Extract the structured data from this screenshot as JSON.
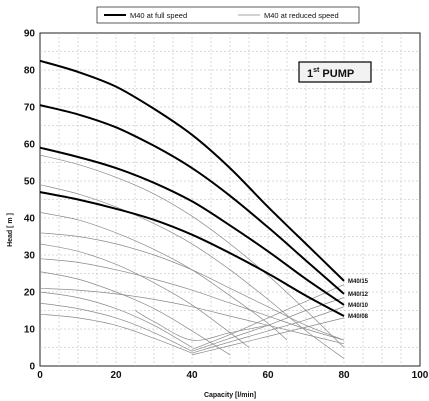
{
  "chart_data": {
    "type": "line",
    "title": "",
    "xlabel": "Capacity  [l/min]",
    "ylabel": "Head  [ m ]",
    "xlim": [
      0,
      100
    ],
    "ylim": [
      0,
      90
    ],
    "xticks": [
      "0",
      "20",
      "40",
      "60",
      "80",
      "100"
    ],
    "yticks": [
      "0",
      "10",
      "20",
      "30",
      "40",
      "50",
      "60",
      "70",
      "80",
      "90"
    ],
    "grid": true,
    "legend_position": "top",
    "legend": {
      "full": "M40 at full speed",
      "reduced": "M40 at reduced speed"
    },
    "annotation": {
      "prefix": "1",
      "superscript": "st",
      "suffix": " PUMP"
    },
    "series": [
      {
        "name": "M40/15",
        "style": "full",
        "label": "M40/15",
        "x": [
          0,
          10,
          20,
          30,
          40,
          50,
          60,
          70,
          80
        ],
        "y": [
          82.5,
          79.5,
          75.5,
          69.5,
          62.5,
          53.5,
          43,
          33,
          23
        ]
      },
      {
        "name": "M40/12",
        "style": "full",
        "label": "M40/12",
        "x": [
          0,
          10,
          20,
          30,
          40,
          50,
          60,
          70,
          80
        ],
        "y": [
          70.5,
          68,
          64.5,
          59.5,
          53.5,
          46,
          37.5,
          28.5,
          19.5
        ]
      },
      {
        "name": "M40/10",
        "style": "full",
        "label": "M40/10",
        "x": [
          0,
          10,
          20,
          30,
          40,
          50,
          60,
          70,
          80
        ],
        "y": [
          59,
          56.5,
          53.5,
          49.5,
          44.5,
          38,
          31,
          23.5,
          16.5
        ]
      },
      {
        "name": "M40/08",
        "style": "full",
        "label": "M40/08",
        "x": [
          0,
          10,
          20,
          30,
          40,
          50,
          60,
          70,
          80
        ],
        "y": [
          47,
          45,
          42.5,
          39.5,
          35.5,
          30.5,
          25,
          19,
          13.5
        ]
      },
      {
        "name": "",
        "style": "reduced",
        "x": [
          0,
          10,
          20,
          30,
          40,
          50,
          60,
          70,
          80
        ],
        "y": [
          57,
          54.5,
          51,
          46.5,
          40.5,
          33,
          24.5,
          15,
          5
        ]
      },
      {
        "name": "",
        "style": "reduced",
        "x": [
          0,
          10,
          20,
          30,
          40,
          50,
          60,
          70,
          80
        ],
        "y": [
          49,
          46.5,
          43,
          38.5,
          33,
          26,
          18,
          9.5,
          2
        ]
      },
      {
        "name": "",
        "style": "reduced",
        "x": [
          0,
          10,
          20,
          30,
          40,
          50,
          60,
          65
        ],
        "y": [
          41.5,
          39.5,
          36,
          31.5,
          26,
          19,
          11.5,
          7
        ]
      },
      {
        "name": "",
        "style": "reduced",
        "x": [
          0,
          10,
          20,
          30,
          40,
          50,
          60,
          70,
          80
        ],
        "y": [
          36,
          35,
          33,
          30,
          26,
          21,
          16,
          11,
          7
        ]
      },
      {
        "name": "",
        "style": "reduced",
        "x": [
          0,
          10,
          20,
          30,
          40,
          50,
          55
        ],
        "y": [
          33,
          31,
          27.5,
          22.5,
          16.5,
          9,
          5
        ]
      },
      {
        "name": "",
        "style": "reduced",
        "x": [
          0,
          10,
          20,
          30,
          40,
          50,
          60,
          70,
          80
        ],
        "y": [
          29,
          28,
          26,
          23.5,
          20.5,
          17,
          13.5,
          10,
          7
        ]
      },
      {
        "name": "",
        "style": "reduced",
        "x": [
          0,
          10,
          20,
          30,
          40,
          50
        ],
        "y": [
          25.5,
          23.5,
          20,
          15.5,
          9.5,
          3
        ]
      },
      {
        "name": "",
        "style": "reduced",
        "x": [
          0,
          10,
          20,
          30,
          40,
          50,
          60,
          70,
          80
        ],
        "y": [
          21,
          20.5,
          19.5,
          18,
          16,
          13.5,
          11,
          8.5,
          6
        ]
      },
      {
        "name": "",
        "style": "reduced",
        "x": [
          0,
          10,
          20,
          30,
          40
        ],
        "y": [
          20,
          18.5,
          15.5,
          11,
          5
        ]
      },
      {
        "name": "",
        "style": "reduced",
        "x": [
          0,
          10,
          20,
          30,
          40
        ],
        "y": [
          17,
          15.5,
          13,
          9,
          4
        ]
      },
      {
        "name": "",
        "style": "reduced",
        "x": [
          0,
          10,
          20,
          30,
          40
        ],
        "y": [
          14,
          13,
          11,
          7.5,
          3.5
        ]
      },
      {
        "name": "",
        "style": "reduced",
        "x": [
          40,
          50,
          60,
          70,
          80
        ],
        "y": [
          4.5,
          8.5,
          13,
          17.5,
          22
        ]
      },
      {
        "name": "",
        "style": "reduced",
        "x": [
          40,
          50,
          60,
          70,
          80
        ],
        "y": [
          4,
          7.5,
          11,
          15,
          18.5
        ]
      },
      {
        "name": "",
        "style": "reduced",
        "x": [
          40,
          50,
          60,
          70,
          80
        ],
        "y": [
          3.5,
          6.5,
          9.5,
          12.5,
          16
        ]
      },
      {
        "name": "",
        "style": "reduced",
        "x": [
          40,
          50,
          60,
          70,
          80
        ],
        "y": [
          3,
          5.5,
          8,
          10.5,
          13
        ]
      },
      {
        "name": "",
        "style": "reduced",
        "x": [
          25,
          30,
          40,
          50,
          60
        ],
        "y": [
          15,
          12,
          7,
          9,
          11
        ]
      }
    ]
  }
}
